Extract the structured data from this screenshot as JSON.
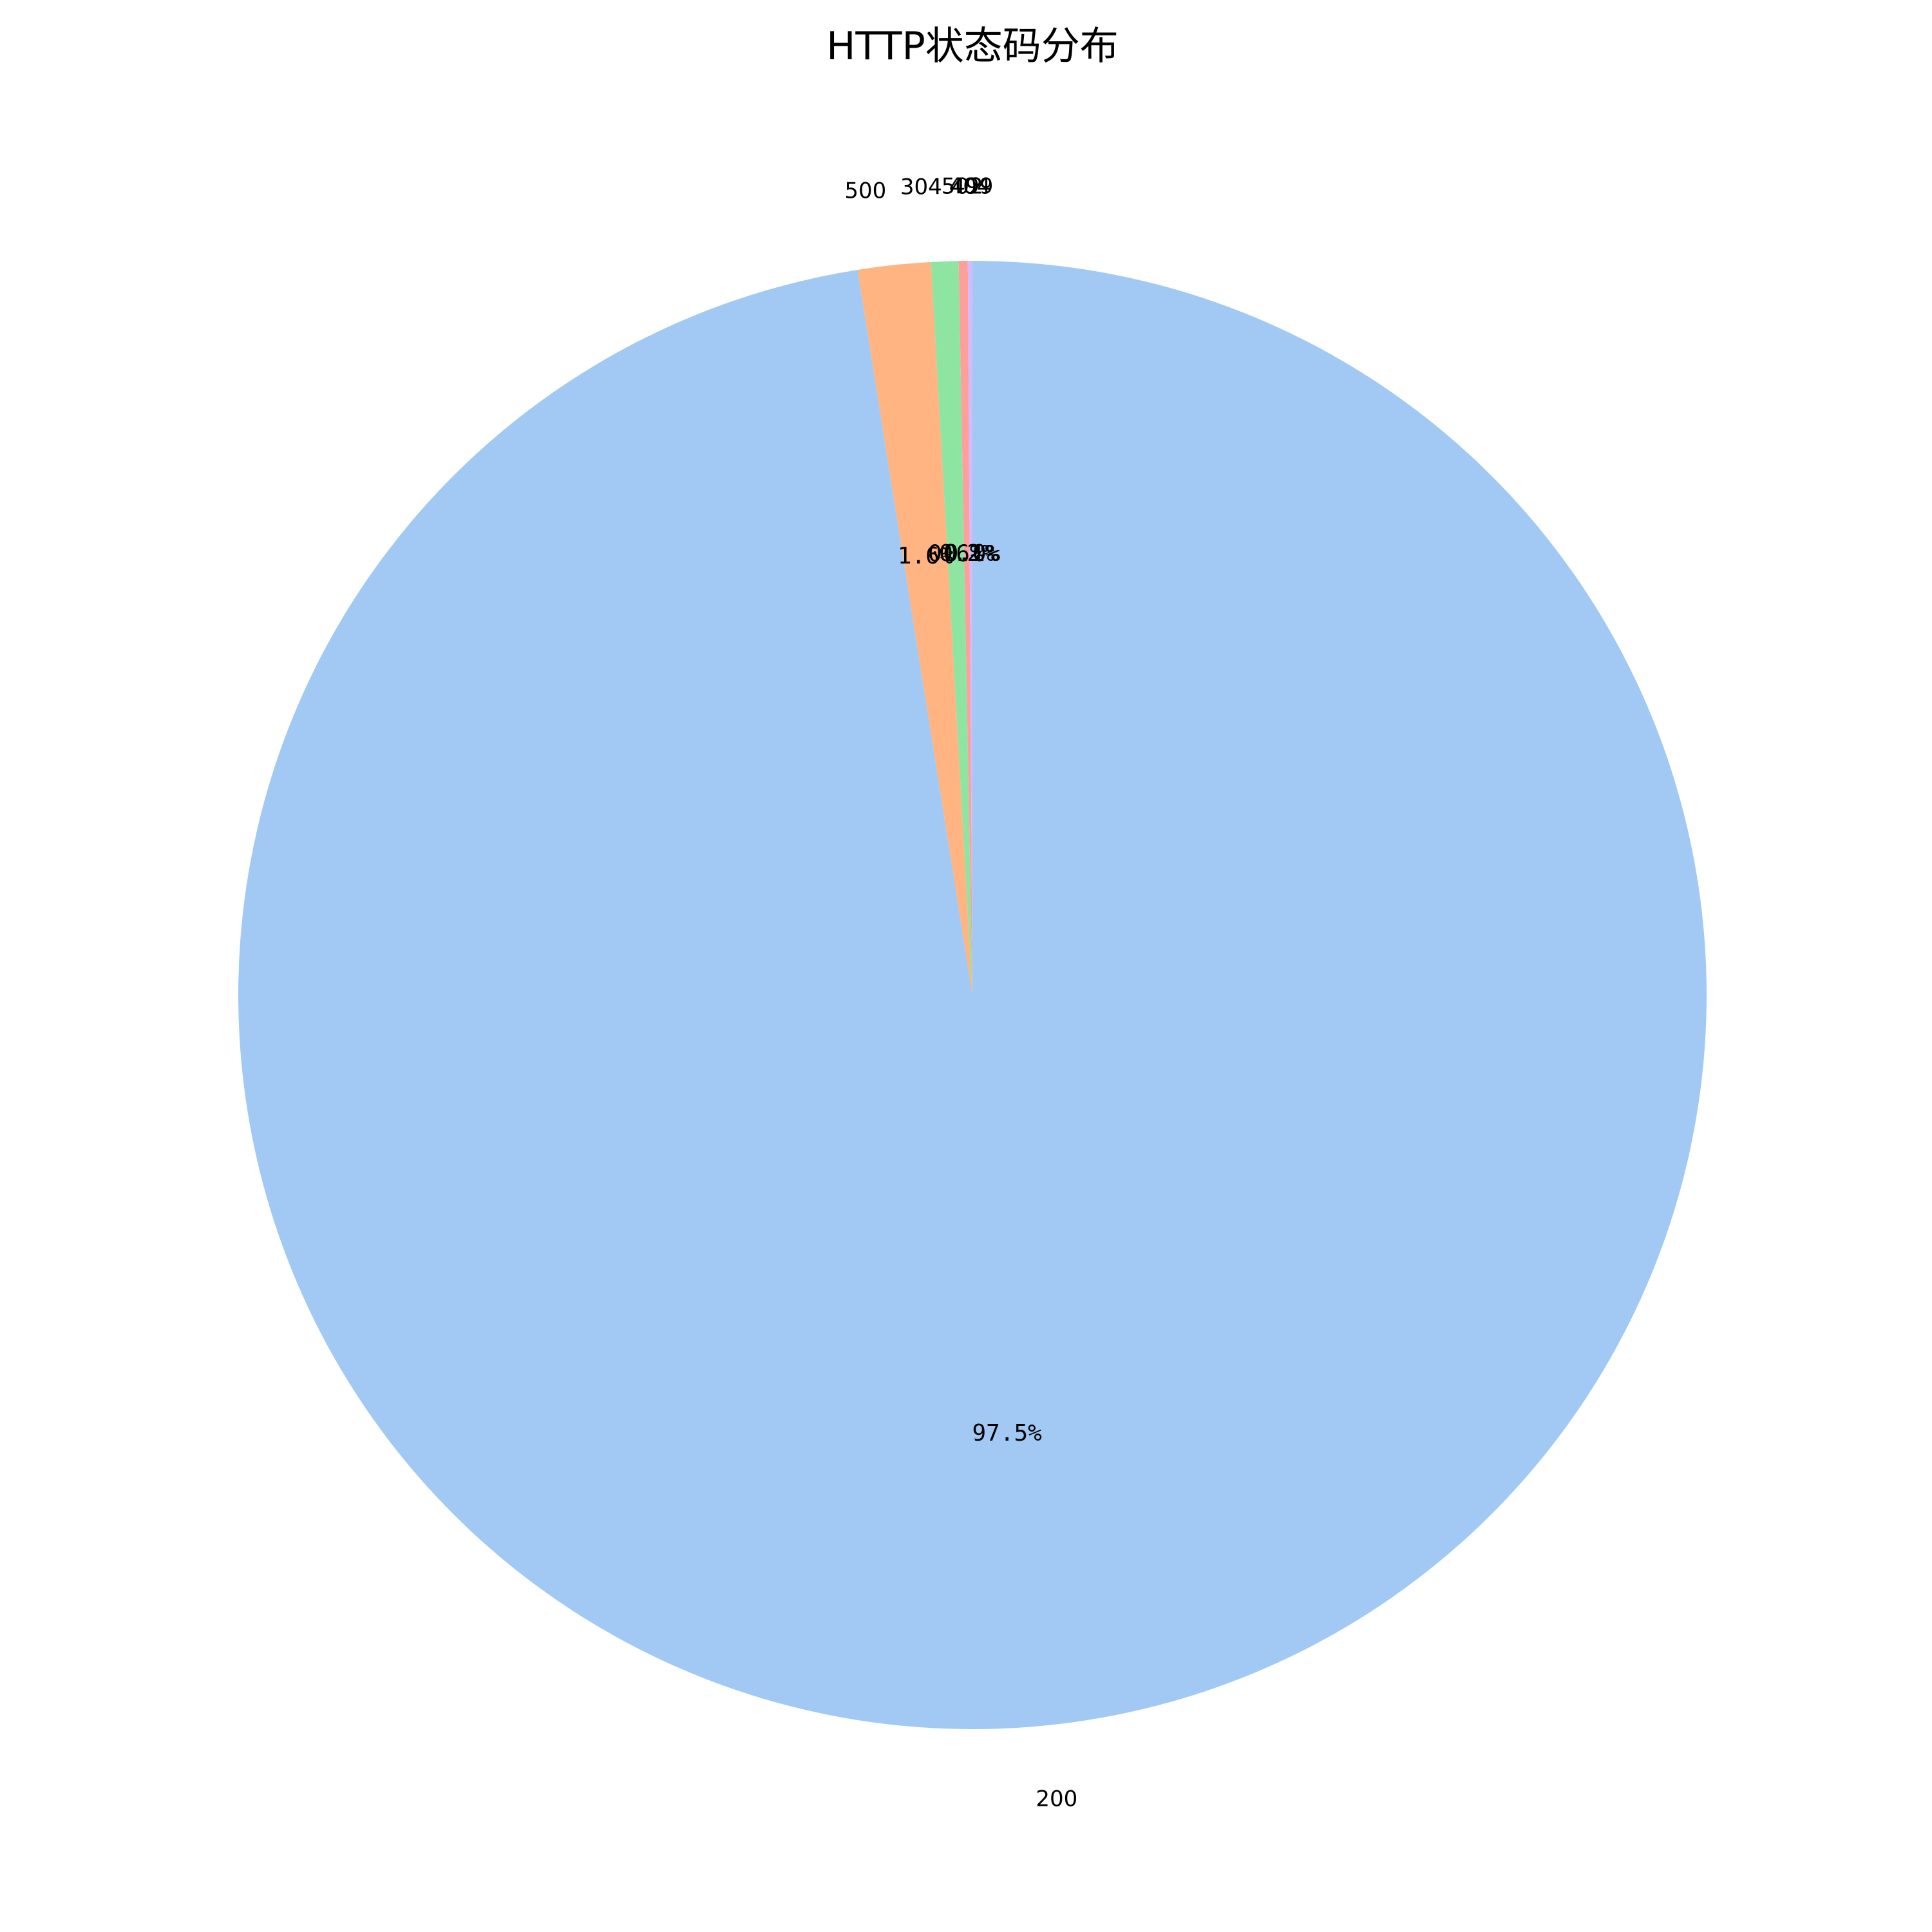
{
  "chart_data": {
    "type": "pie",
    "title": "HTTP状态码分布",
    "start_angle_deg": 90,
    "direction": "clockwise",
    "slices": [
      {
        "label": "200",
        "percent": 97.5,
        "pct_text": "97.5%",
        "color": "#a1c9f4"
      },
      {
        "label": "500",
        "percent": 1.6,
        "pct_text": "1.6%",
        "color": "#ffb482"
      },
      {
        "label": "304",
        "percent": 0.6,
        "pct_text": "0.6%",
        "color": "#8de5a1"
      },
      {
        "label": "502",
        "percent": 0.2,
        "pct_text": "0.2%",
        "color": "#ff9f9b"
      },
      {
        "label": "404",
        "percent": 0.1,
        "pct_text": "0.1%",
        "color": "#d0bbff"
      },
      {
        "label": "499",
        "percent": 0.0,
        "pct_text": "0.0%",
        "color": "#debb9b"
      }
    ]
  }
}
